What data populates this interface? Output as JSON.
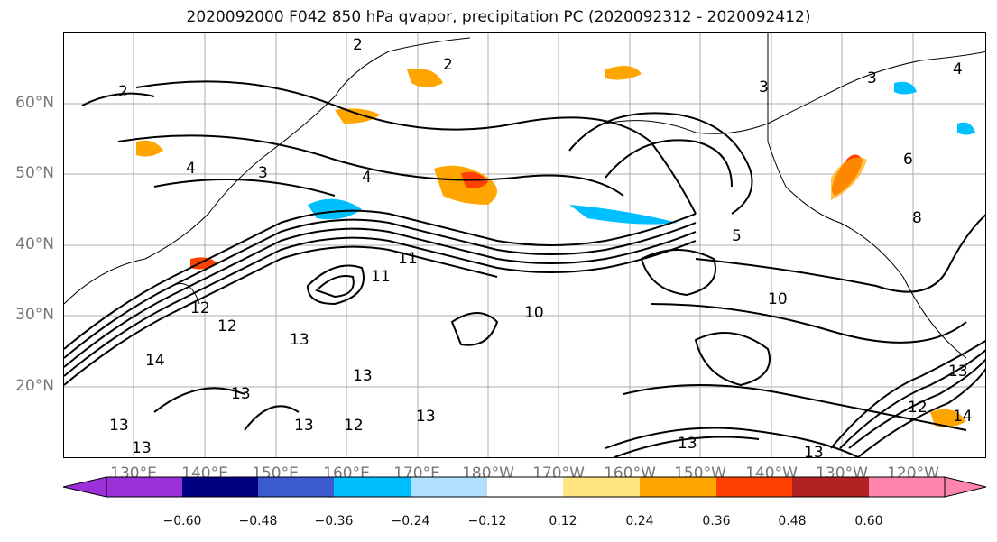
{
  "title": "2020092000 F042 850 hPa qvapor, precipitation PC (2020092312 - 2020092412)",
  "lat_labels": [
    "60°N",
    "50°N",
    "40°N",
    "30°N",
    "20°N"
  ],
  "lon_labels": [
    "130°E",
    "140°E",
    "150°E",
    "160°E",
    "170°E",
    "180°W",
    "170°W",
    "160°W",
    "150°W",
    "140°W",
    "130°W",
    "120°W"
  ],
  "colorbar": {
    "colors": [
      "#9b30d9",
      "#000080",
      "#3a5bd0",
      "#00bfff",
      "#b0e0ff",
      "#ffffff",
      "#ffe680",
      "#ffa500",
      "#ff4000",
      "#b22222",
      "#ff85b0"
    ],
    "ticks": [
      "−0.60",
      "−0.48",
      "−0.36",
      "−0.24",
      "−0.12",
      "0.12",
      "0.24",
      "0.36",
      "0.48",
      "0.60"
    ]
  },
  "contour_labels": [
    "2",
    "3",
    "2",
    "3",
    "4",
    "4",
    "3",
    "2",
    "5",
    "6",
    "8",
    "11",
    "11",
    "12",
    "12",
    "14",
    "13",
    "13",
    "13",
    "13",
    "13",
    "13",
    "12",
    "13",
    "10",
    "10",
    "13",
    "13",
    "13",
    "14",
    "12",
    "4"
  ]
}
